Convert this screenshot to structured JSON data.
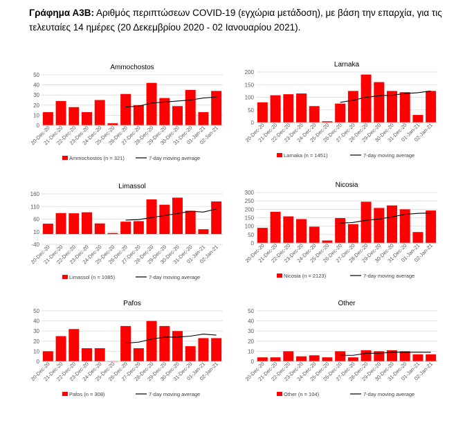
{
  "caption": {
    "bold": "Γράφημα Α3Β:",
    "text": " Αριθμός περιπτώσεων COVID-19 (εγχώρια μετάδοση), με βάση την επαρχία, για τις τελευταίες 14 ημέρες (20 Δεκεμβρίου 2020 - 02 Ιανουαρίου 2021)."
  },
  "colors": {
    "bar": "#ff0000",
    "line": "#000000",
    "grid": "#d9d9d9",
    "axis": "#bfbfbf"
  },
  "chart_data": [
    {
      "type": "bar",
      "title": "Ammochostos",
      "categories": [
        "20-Dec-20",
        "21-Dec-20",
        "22-Dec-20",
        "23-Dec-20",
        "24-Dec-20",
        "25-Dec-20",
        "26-Dec-20",
        "27-Dec-20",
        "28-Dec-20",
        "29-Dec-20",
        "30-Dec-20",
        "31-Dec-20",
        "01-Jan-21",
        "02-Jan-21"
      ],
      "ylim": [
        0,
        50
      ],
      "yticks": [
        0,
        10,
        20,
        30,
        40,
        50
      ],
      "series": [
        {
          "name": "Ammochostos (n = 321)",
          "type": "bar",
          "values": [
            13,
            24,
            18,
            13,
            25,
            2,
            31,
            20,
            42,
            27,
            19,
            35,
            13,
            34
          ]
        },
        {
          "name": "7-day moving average",
          "type": "line",
          "values": [
            null,
            null,
            null,
            null,
            null,
            null,
            18,
            19,
            22,
            23,
            24,
            25,
            27,
            28
          ]
        }
      ]
    },
    {
      "type": "bar",
      "title": "Larnaka",
      "categories": [
        "20-Dec-20",
        "21-Dec-20",
        "22-Dec-20",
        "23-Dec-20",
        "24-Dec-20",
        "25-Dec-20",
        "26-Dec-20",
        "27-Dec-20",
        "28-Dec-20",
        "29-Dec-20",
        "30-Dec-20",
        "31-Dec-20",
        "01-Jan-21",
        "02-Jan-21"
      ],
      "ylim": [
        0,
        200
      ],
      "yticks": [
        0,
        50,
        100,
        150,
        200
      ],
      "series": [
        {
          "name": "Larnaka (n = 1451)",
          "type": "bar",
          "values": [
            80,
            108,
            112,
            115,
            65,
            5,
            75,
            125,
            190,
            160,
            125,
            120,
            30,
            125
          ]
        },
        {
          "name": "7-day moving average",
          "type": "line",
          "values": [
            null,
            null,
            null,
            null,
            null,
            null,
            80,
            88,
            100,
            106,
            108,
            115,
            118,
            125
          ]
        }
      ]
    },
    {
      "type": "bar",
      "title": "Limassol",
      "categories": [
        "20-Dec-20",
        "21-Dec-20",
        "22-Dec-20",
        "23-Dec-20",
        "24-Dec-20",
        "25-Dec-20",
        "26-Dec-20",
        "27-Dec-20",
        "28-Dec-20",
        "29-Dec-20",
        "30-Dec-20",
        "31-Dec-20",
        "01-Jan-21",
        "02-Jan-21"
      ],
      "ylim": [
        -40,
        160
      ],
      "yticks": [
        -40,
        10,
        60,
        110,
        160
      ],
      "series": [
        {
          "name": "Limassol (n = 1085)",
          "type": "bar",
          "values": [
            42,
            84,
            83,
            87,
            43,
            5,
            50,
            52,
            138,
            117,
            145,
            93,
            20,
            130
          ]
        },
        {
          "name": "7-day moving average",
          "type": "line",
          "values": [
            null,
            null,
            null,
            null,
            null,
            null,
            56,
            58,
            66,
            74,
            82,
            91,
            88,
            100
          ]
        }
      ]
    },
    {
      "type": "bar",
      "title": "Nicosia",
      "categories": [
        "20-Dec-20",
        "21-Dec-20",
        "22-Dec-20",
        "23-Dec-20",
        "24-Dec-20",
        "25-Dec-20",
        "26-Dec-20",
        "27-Dec-20",
        "28-Dec-20",
        "29-Dec-20",
        "30-Dec-20",
        "31-Dec-20",
        "01-Jan-21",
        "02-Jan-21"
      ],
      "ylim": [
        0,
        300
      ],
      "yticks": [
        0,
        50,
        100,
        150,
        200,
        250,
        300
      ],
      "series": [
        {
          "name": "Nicosia (n = 2123)",
          "type": "bar",
          "values": [
            90,
            185,
            158,
            142,
            97,
            15,
            148,
            112,
            245,
            208,
            223,
            200,
            65,
            193
          ]
        },
        {
          "name": "7-day moving average",
          "type": "line",
          "values": [
            null,
            null,
            null,
            null,
            null,
            null,
            118,
            122,
            135,
            142,
            155,
            170,
            176,
            178
          ]
        }
      ]
    },
    {
      "type": "bar",
      "title": "Pafos",
      "categories": [
        "20-Dec-20",
        "21-Dec-20",
        "22-Dec-20",
        "23-Dec-20",
        "24-Dec-20",
        "25-Dec-20",
        "26-Dec-20",
        "27-Dec-20",
        "28-Dec-20",
        "29-Dec-20",
        "30-Dec-20",
        "31-Dec-20",
        "01-Jan-21",
        "02-Jan-21"
      ],
      "ylim": [
        0,
        50
      ],
      "yticks": [
        0,
        10,
        20,
        30,
        40,
        50
      ],
      "series": [
        {
          "name": "Pafos (n = 308)",
          "type": "bar",
          "values": [
            10,
            25,
            32,
            13,
            13,
            0,
            35,
            13,
            40,
            35,
            30,
            15,
            23,
            23
          ]
        },
        {
          "name": "7-day moving average",
          "type": "line",
          "values": [
            null,
            null,
            null,
            null,
            null,
            null,
            18,
            19,
            22,
            24,
            24,
            25,
            27,
            26
          ]
        }
      ]
    },
    {
      "type": "bar",
      "title": "Other",
      "categories": [
        "20-Dec-20",
        "21-Dec-20",
        "22-Dec-20",
        "23-Dec-20",
        "24-Dec-20",
        "25-Dec-20",
        "26-Dec-20",
        "27-Dec-20",
        "28-Dec-20",
        "29-Dec-20",
        "30-Dec-20",
        "31-Dec-20",
        "01-Jan-21",
        "02-Jan-21"
      ],
      "ylim": [
        0,
        50
      ],
      "yticks": [
        0,
        10,
        20,
        30,
        40,
        50
      ],
      "series": [
        {
          "name": "Other (n = 104)",
          "type": "bar",
          "values": [
            4,
            4,
            10,
            5,
            6,
            4,
            10,
            4,
            11,
            10,
            11,
            10,
            7,
            7
          ]
        },
        {
          "name": "7-day moving average",
          "type": "line",
          "values": [
            null,
            null,
            null,
            null,
            null,
            null,
            6,
            6,
            8,
            8,
            9,
            9,
            9,
            9
          ]
        }
      ]
    }
  ]
}
